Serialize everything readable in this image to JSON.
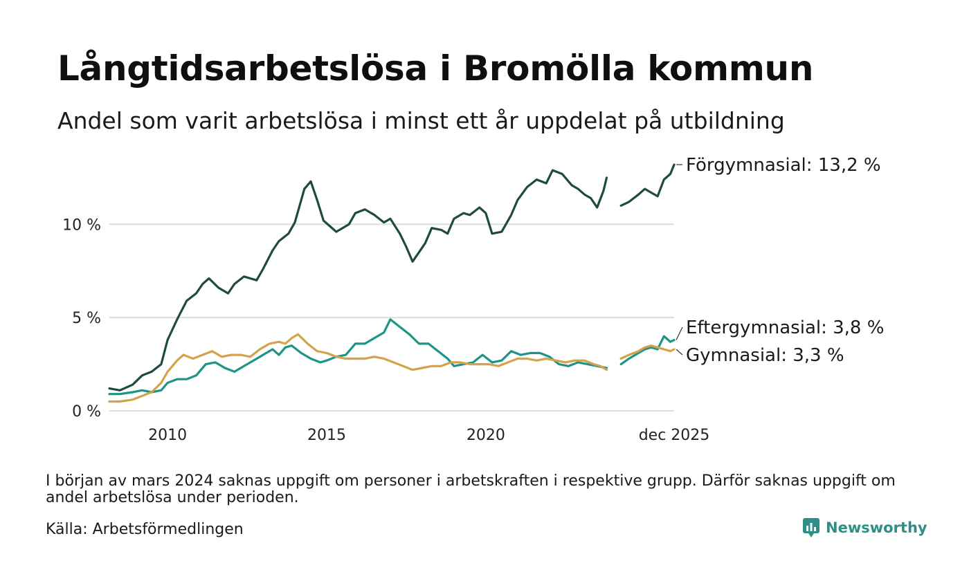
{
  "header": {
    "title": "Långtidsarbetslösa i Bromölla kommun",
    "subtitle": "Andel som varit arbetslösa i minst ett år uppdelat på utbildning"
  },
  "colors": {
    "forgymnasial": "#1f4a42",
    "eftergymnasial": "#1c9486",
    "gymnasial": "#d4a24c",
    "grid": "#dddddd",
    "brand": "#2e8f86"
  },
  "chart_data": {
    "type": "line",
    "title": "Långtidsarbetslösa i Bromölla kommun",
    "subtitle": "Andel som varit arbetslösa i minst ett år uppdelat på utbildning",
    "xlabel": "",
    "ylabel": "",
    "x_unit": "year (decimal)",
    "x_range": [
      2008.17,
      2025.92
    ],
    "ylim": [
      0,
      13.2
    ],
    "yticks": [
      0,
      5,
      10
    ],
    "ytick_labels": [
      "0 %",
      "5 %",
      "10 %"
    ],
    "xticks": [
      2010,
      2015,
      2020,
      2025.92
    ],
    "xtick_labels": [
      "2010",
      "2015",
      "2020",
      "dec 2025"
    ],
    "grid": true,
    "legend": "direct labels at line ends (right)",
    "gap_note": "no data around 2023.75–2024.25",
    "series": [
      {
        "name": "Förgymnasial",
        "end_label": "Förgymnasial: 13,2 %",
        "color": "#1f4a42",
        "segments": [
          [
            [
              2008.17,
              1.2
            ],
            [
              2008.5,
              1.1
            ],
            [
              2008.9,
              1.4
            ],
            [
              2009.2,
              1.9
            ],
            [
              2009.5,
              2.1
            ],
            [
              2009.8,
              2.5
            ],
            [
              2010.0,
              3.8
            ],
            [
              2010.3,
              4.9
            ],
            [
              2010.6,
              5.9
            ],
            [
              2010.9,
              6.3
            ],
            [
              2011.1,
              6.8
            ],
            [
              2011.3,
              7.1
            ],
            [
              2011.6,
              6.6
            ],
            [
              2011.9,
              6.3
            ],
            [
              2012.1,
              6.8
            ],
            [
              2012.4,
              7.2
            ],
            [
              2012.8,
              7.0
            ],
            [
              2013.0,
              7.6
            ],
            [
              2013.3,
              8.6
            ],
            [
              2013.5,
              9.1
            ],
            [
              2013.8,
              9.5
            ],
            [
              2014.0,
              10.1
            ],
            [
              2014.3,
              11.9
            ],
            [
              2014.5,
              12.3
            ],
            [
              2014.7,
              11.3
            ],
            [
              2014.9,
              10.2
            ],
            [
              2015.1,
              9.9
            ],
            [
              2015.3,
              9.6
            ],
            [
              2015.5,
              9.8
            ],
            [
              2015.7,
              10.0
            ],
            [
              2015.9,
              10.6
            ],
            [
              2016.2,
              10.8
            ],
            [
              2016.5,
              10.5
            ],
            [
              2016.8,
              10.1
            ],
            [
              2017.0,
              10.3
            ],
            [
              2017.3,
              9.5
            ],
            [
              2017.5,
              8.8
            ],
            [
              2017.7,
              8.0
            ],
            [
              2017.9,
              8.5
            ],
            [
              2018.1,
              9.0
            ],
            [
              2018.3,
              9.8
            ],
            [
              2018.6,
              9.7
            ],
            [
              2018.8,
              9.5
            ],
            [
              2019.0,
              10.3
            ],
            [
              2019.3,
              10.6
            ],
            [
              2019.5,
              10.5
            ],
            [
              2019.8,
              10.9
            ],
            [
              2020.0,
              10.6
            ],
            [
              2020.2,
              9.5
            ],
            [
              2020.5,
              9.6
            ],
            [
              2020.8,
              10.5
            ],
            [
              2021.0,
              11.3
            ],
            [
              2021.3,
              12.0
            ],
            [
              2021.6,
              12.4
            ],
            [
              2021.9,
              12.2
            ],
            [
              2022.1,
              12.9
            ],
            [
              2022.4,
              12.7
            ],
            [
              2022.7,
              12.1
            ],
            [
              2022.9,
              11.9
            ],
            [
              2023.1,
              11.6
            ],
            [
              2023.3,
              11.4
            ],
            [
              2023.5,
              10.9
            ],
            [
              2023.7,
              11.8
            ],
            [
              2023.8,
              12.5
            ]
          ],
          [
            [
              2024.25,
              11.0
            ],
            [
              2024.5,
              11.2
            ],
            [
              2024.8,
              11.6
            ],
            [
              2025.0,
              11.9
            ],
            [
              2025.2,
              11.7
            ],
            [
              2025.4,
              11.5
            ],
            [
              2025.6,
              12.4
            ],
            [
              2025.8,
              12.7
            ],
            [
              2025.92,
              13.2
            ]
          ]
        ]
      },
      {
        "name": "Eftergymnasial",
        "end_label": "Eftergymnasial:  3,8 %",
        "color": "#1c9486",
        "segments": [
          [
            [
              2008.17,
              0.9
            ],
            [
              2008.5,
              0.9
            ],
            [
              2008.9,
              1.0
            ],
            [
              2009.2,
              1.1
            ],
            [
              2009.5,
              1.0
            ],
            [
              2009.8,
              1.1
            ],
            [
              2010.0,
              1.5
            ],
            [
              2010.3,
              1.7
            ],
            [
              2010.6,
              1.7
            ],
            [
              2010.9,
              1.9
            ],
            [
              2011.2,
              2.5
            ],
            [
              2011.5,
              2.6
            ],
            [
              2011.8,
              2.3
            ],
            [
              2012.1,
              2.1
            ],
            [
              2012.4,
              2.4
            ],
            [
              2012.7,
              2.7
            ],
            [
              2013.0,
              3.0
            ],
            [
              2013.3,
              3.3
            ],
            [
              2013.5,
              3.0
            ],
            [
              2013.7,
              3.4
            ],
            [
              2013.9,
              3.5
            ],
            [
              2014.2,
              3.1
            ],
            [
              2014.5,
              2.8
            ],
            [
              2014.8,
              2.6
            ],
            [
              2015.0,
              2.7
            ],
            [
              2015.3,
              2.9
            ],
            [
              2015.6,
              3.0
            ],
            [
              2015.9,
              3.6
            ],
            [
              2016.2,
              3.6
            ],
            [
              2016.5,
              3.9
            ],
            [
              2016.8,
              4.2
            ],
            [
              2017.0,
              4.9
            ],
            [
              2017.3,
              4.5
            ],
            [
              2017.6,
              4.1
            ],
            [
              2017.9,
              3.6
            ],
            [
              2018.2,
              3.6
            ],
            [
              2018.5,
              3.2
            ],
            [
              2018.8,
              2.8
            ],
            [
              2019.0,
              2.4
            ],
            [
              2019.3,
              2.5
            ],
            [
              2019.6,
              2.6
            ],
            [
              2019.9,
              3.0
            ],
            [
              2020.2,
              2.6
            ],
            [
              2020.5,
              2.7
            ],
            [
              2020.8,
              3.2
            ],
            [
              2021.1,
              3.0
            ],
            [
              2021.4,
              3.1
            ],
            [
              2021.7,
              3.1
            ],
            [
              2022.0,
              2.9
            ],
            [
              2022.3,
              2.5
            ],
            [
              2022.6,
              2.4
            ],
            [
              2022.9,
              2.6
            ],
            [
              2023.2,
              2.5
            ],
            [
              2023.5,
              2.4
            ],
            [
              2023.8,
              2.3
            ]
          ],
          [
            [
              2024.25,
              2.5
            ],
            [
              2024.5,
              2.8
            ],
            [
              2024.8,
              3.1
            ],
            [
              2025.0,
              3.3
            ],
            [
              2025.2,
              3.4
            ],
            [
              2025.4,
              3.3
            ],
            [
              2025.6,
              4.0
            ],
            [
              2025.8,
              3.7
            ],
            [
              2025.92,
              3.8
            ]
          ]
        ]
      },
      {
        "name": "Gymnasial",
        "end_label": "Gymnasial:  3,3 %",
        "color": "#d4a24c",
        "segments": [
          [
            [
              2008.17,
              0.5
            ],
            [
              2008.5,
              0.5
            ],
            [
              2008.9,
              0.6
            ],
            [
              2009.2,
              0.8
            ],
            [
              2009.5,
              1.0
            ],
            [
              2009.8,
              1.5
            ],
            [
              2010.0,
              2.1
            ],
            [
              2010.3,
              2.7
            ],
            [
              2010.5,
              3.0
            ],
            [
              2010.8,
              2.8
            ],
            [
              2011.1,
              3.0
            ],
            [
              2011.4,
              3.2
            ],
            [
              2011.7,
              2.9
            ],
            [
              2012.0,
              3.0
            ],
            [
              2012.3,
              3.0
            ],
            [
              2012.6,
              2.9
            ],
            [
              2012.9,
              3.3
            ],
            [
              2013.2,
              3.6
            ],
            [
              2013.5,
              3.7
            ],
            [
              2013.7,
              3.6
            ],
            [
              2013.9,
              3.9
            ],
            [
              2014.1,
              4.1
            ],
            [
              2014.4,
              3.6
            ],
            [
              2014.7,
              3.2
            ],
            [
              2015.0,
              3.1
            ],
            [
              2015.3,
              2.9
            ],
            [
              2015.6,
              2.8
            ],
            [
              2015.9,
              2.8
            ],
            [
              2016.2,
              2.8
            ],
            [
              2016.5,
              2.9
            ],
            [
              2016.8,
              2.8
            ],
            [
              2017.1,
              2.6
            ],
            [
              2017.4,
              2.4
            ],
            [
              2017.7,
              2.2
            ],
            [
              2018.0,
              2.3
            ],
            [
              2018.3,
              2.4
            ],
            [
              2018.6,
              2.4
            ],
            [
              2018.9,
              2.6
            ],
            [
              2019.2,
              2.6
            ],
            [
              2019.5,
              2.5
            ],
            [
              2019.8,
              2.5
            ],
            [
              2020.1,
              2.5
            ],
            [
              2020.4,
              2.4
            ],
            [
              2020.7,
              2.6
            ],
            [
              2021.0,
              2.8
            ],
            [
              2021.3,
              2.8
            ],
            [
              2021.6,
              2.7
            ],
            [
              2021.9,
              2.8
            ],
            [
              2022.2,
              2.7
            ],
            [
              2022.5,
              2.6
            ],
            [
              2022.8,
              2.7
            ],
            [
              2023.1,
              2.7
            ],
            [
              2023.4,
              2.5
            ],
            [
              2023.6,
              2.4
            ],
            [
              2023.8,
              2.2
            ]
          ],
          [
            [
              2024.25,
              2.8
            ],
            [
              2024.5,
              3.0
            ],
            [
              2024.8,
              3.2
            ],
            [
              2025.0,
              3.4
            ],
            [
              2025.2,
              3.5
            ],
            [
              2025.4,
              3.4
            ],
            [
              2025.6,
              3.3
            ],
            [
              2025.8,
              3.2
            ],
            [
              2025.92,
              3.3
            ]
          ]
        ]
      }
    ]
  },
  "footer": {
    "note": "I början av mars 2024 saknas uppgift om personer i arbetskraften i respektive grupp. Därför saknas uppgift om andel arbetslösa under perioden.",
    "source": "Källa: Arbetsförmedlingen",
    "brand": "Newsworthy",
    "brand_icon": "newsworthy-logo-icon"
  }
}
